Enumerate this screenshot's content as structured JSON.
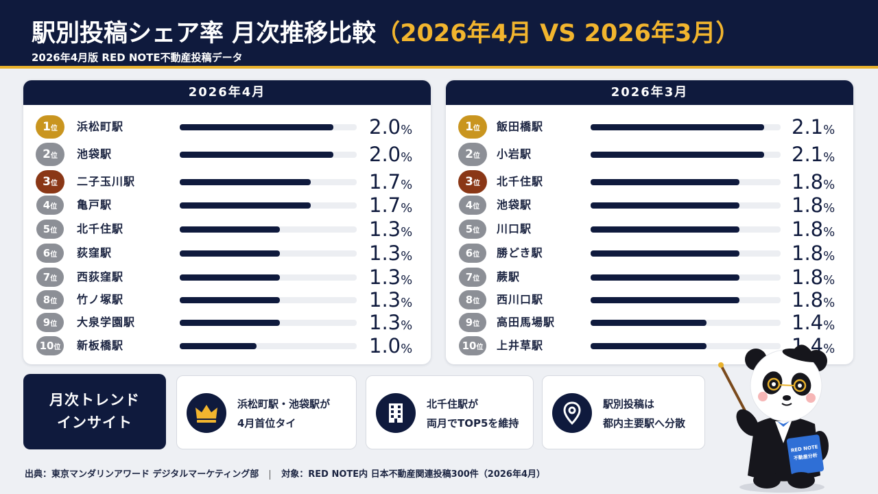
{
  "header": {
    "title_main": "駅別投稿シェア率 月次推移比較",
    "title_highlight": "（2026年4月 VS 2026年3月）",
    "subtitle": "2026年4月版 RED NOTE不動産投稿データ"
  },
  "colors": {
    "navy": "#0f1a3d",
    "gold": "#e8b12c",
    "rank1": "#c9951f",
    "rank2": "#8c8f96",
    "rank3": "#8a3716"
  },
  "chart_data": [
    {
      "type": "bar",
      "title": "2026年4月",
      "unit": "%",
      "rank_suffix": "位",
      "categories": [
        "浜松町駅",
        "池袋駅",
        "二子玉川駅",
        "亀戸駅",
        "北千住駅",
        "荻窪駅",
        "西荻窪駅",
        "竹ノ塚駅",
        "大泉学園駅",
        "新板橋駅"
      ],
      "values": [
        2.0,
        2.0,
        1.7,
        1.7,
        1.3,
        1.3,
        1.3,
        1.3,
        1.3,
        1.0
      ],
      "value_labels": [
        "2.0",
        "2.0",
        "1.7",
        "1.7",
        "1.3",
        "1.3",
        "1.3",
        "1.3",
        "1.3",
        "1.0"
      ],
      "ranks": [
        "1",
        "2",
        "3",
        "4",
        "5",
        "6",
        "7",
        "8",
        "9",
        "10"
      ],
      "xlim": [
        0,
        2.3
      ]
    },
    {
      "type": "bar",
      "title": "2026年3月",
      "unit": "%",
      "rank_suffix": "位",
      "categories": [
        "飯田橋駅",
        "小岩駅",
        "北千住駅",
        "池袋駅",
        "川口駅",
        "勝どき駅",
        "蕨駅",
        "西川口駅",
        "高田馬場駅",
        "上井草駅"
      ],
      "values": [
        2.1,
        2.1,
        1.8,
        1.8,
        1.8,
        1.8,
        1.8,
        1.8,
        1.4,
        1.4
      ],
      "value_labels": [
        "2.1",
        "2.1",
        "1.8",
        "1.8",
        "1.8",
        "1.8",
        "1.8",
        "1.8",
        "1.4",
        "1.4"
      ],
      "ranks": [
        "1",
        "2",
        "3",
        "4",
        "5",
        "6",
        "7",
        "8",
        "9",
        "10"
      ],
      "xlim": [
        0,
        2.3
      ]
    }
  ],
  "insights": {
    "title_line1": "月次トレンド",
    "title_line2": "インサイト",
    "cards": [
      {
        "icon": "crown-icon",
        "line1": "浜松町駅・池袋駅が",
        "line2": "4月首位タイ"
      },
      {
        "icon": "building-icon",
        "line1": "北千住駅が",
        "line2": "両月でTOP5を維持"
      },
      {
        "icon": "map-pin-icon",
        "line1": "駅別投稿は",
        "line2": "都内主要駅へ分散"
      }
    ]
  },
  "footer": {
    "source": "出典：東京マンダリンアワード デジタルマーケティング部",
    "target": "対象：RED NOTE内 日本不動産関連投稿300件（2026年4月）"
  },
  "mascot": {
    "book_line1": "RED NOTE",
    "book_line2": "不動産分析"
  }
}
